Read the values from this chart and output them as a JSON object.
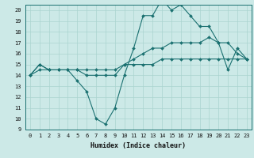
{
  "title": "",
  "xlabel": "Humidex (Indice chaleur)",
  "ylabel": "",
  "background_color": "#cce9e7",
  "grid_color": "#aad4d0",
  "line_color": "#1a7070",
  "xlim": [
    -0.5,
    23.5
  ],
  "ylim": [
    9,
    20.5
  ],
  "xticks": [
    0,
    1,
    2,
    3,
    4,
    5,
    6,
    7,
    8,
    9,
    10,
    11,
    12,
    13,
    14,
    15,
    16,
    17,
    18,
    19,
    20,
    21,
    22,
    23
  ],
  "yticks": [
    9,
    10,
    11,
    12,
    13,
    14,
    15,
    16,
    17,
    18,
    19,
    20
  ],
  "series": [
    [
      14,
      15,
      14.5,
      14.5,
      14.5,
      13.5,
      12.5,
      10,
      9.5,
      11,
      14,
      16.5,
      19.5,
      19.5,
      21,
      20,
      20.5,
      19.5,
      18.5,
      18.5,
      17,
      14.5,
      16.5,
      15.5
    ],
    [
      14,
      15,
      14.5,
      14.5,
      14.5,
      14.5,
      14,
      14,
      14,
      14,
      15,
      15.5,
      16,
      16.5,
      16.5,
      17,
      17,
      17,
      17,
      17.5,
      17,
      17,
      16,
      15.5
    ],
    [
      14,
      14.5,
      14.5,
      14.5,
      14.5,
      14.5,
      14.5,
      14.5,
      14.5,
      14.5,
      15,
      15,
      15,
      15,
      15.5,
      15.5,
      15.5,
      15.5,
      15.5,
      15.5,
      15.5,
      15.5,
      15.5,
      15.5
    ]
  ],
  "tick_fontsize": 5,
  "xlabel_fontsize": 6,
  "marker_size": 2.0,
  "linewidth": 0.8
}
